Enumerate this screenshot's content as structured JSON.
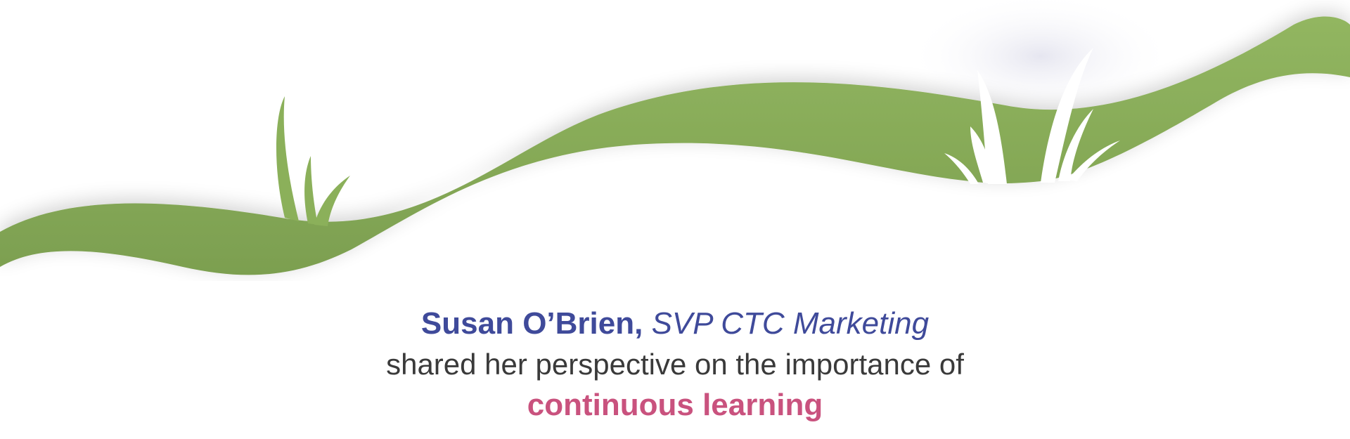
{
  "quote": {
    "name": "Susan O’Brien,",
    "role": "SVP CTC Marketing",
    "statement": "shared her perspective on the importance of",
    "highlight": "continuous learning"
  },
  "colors": {
    "grass": "#8bb05a",
    "grass_dark": "#7b9e4f",
    "name": "#3f4a9a",
    "body_text": "#3a3a3a",
    "highlight": "#c9527e"
  },
  "icons": {
    "left_tuft": "grass-tuft-icon",
    "right_tuft": "white-grass-tuft-icon"
  }
}
